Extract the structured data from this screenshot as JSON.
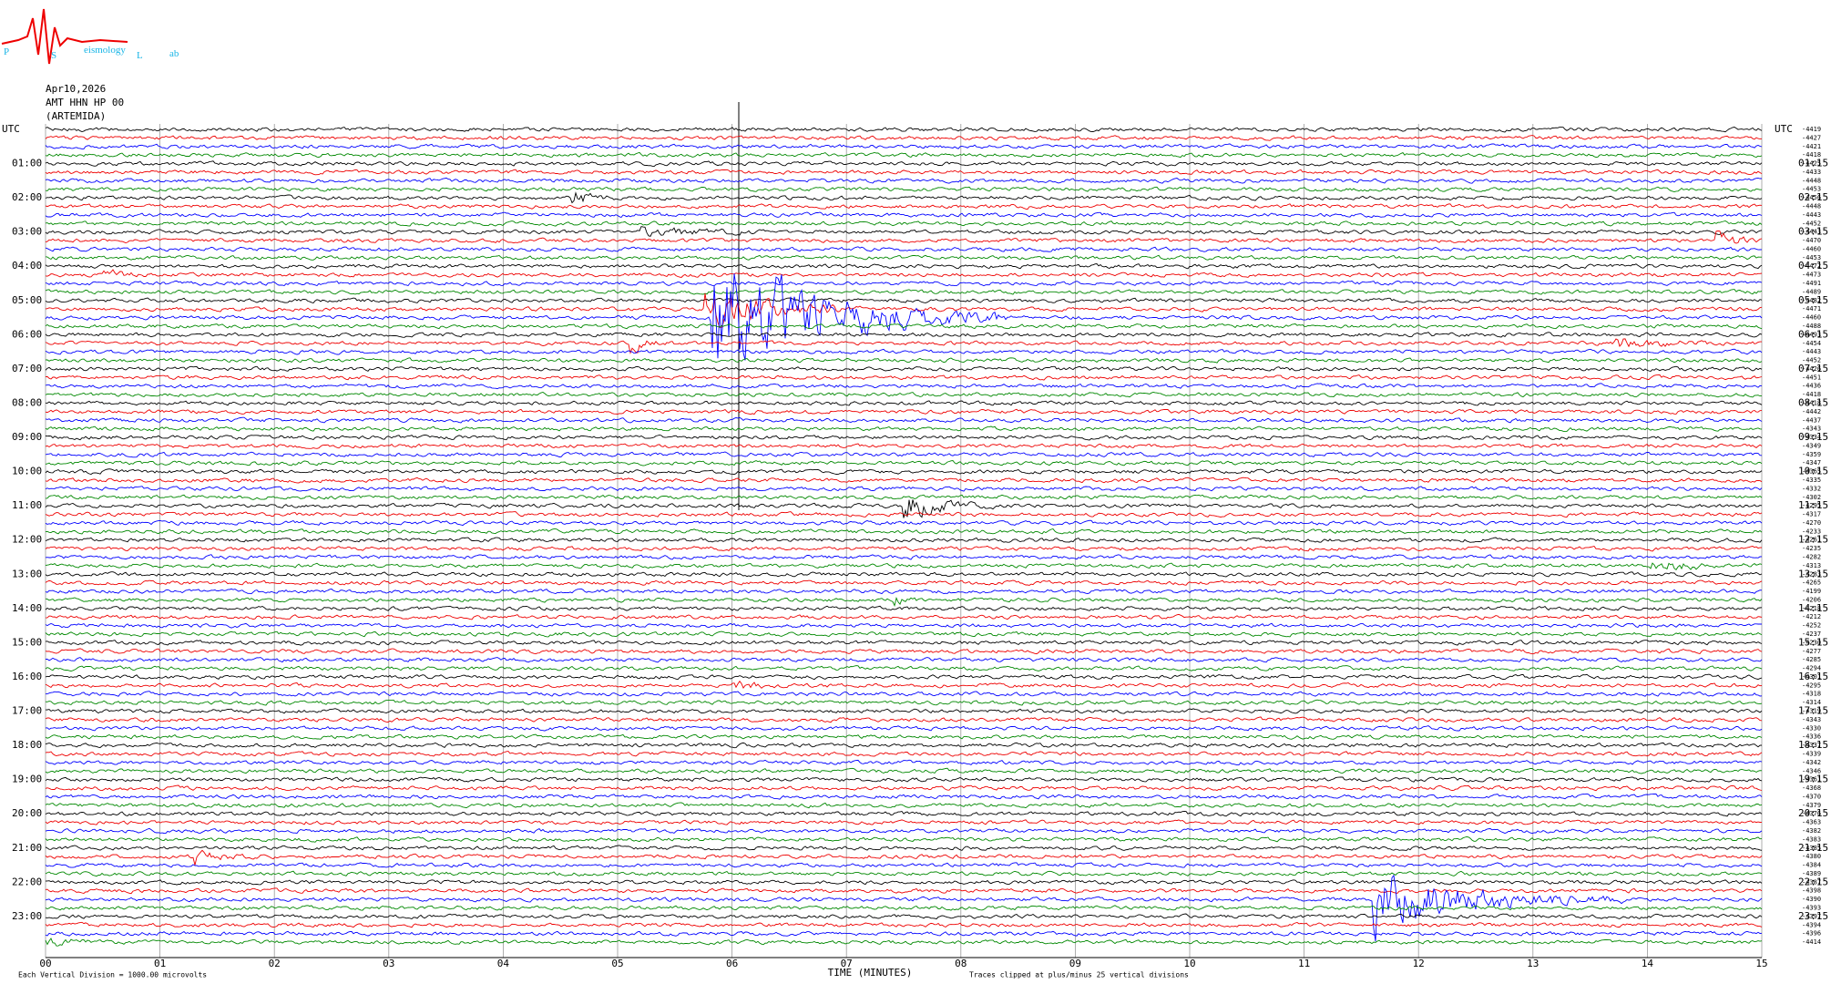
{
  "header": {
    "logo": {
      "letters": [
        "P",
        "S",
        "L"
      ],
      "small": [
        "eismology",
        "ab"
      ]
    },
    "date": "Apr10,2026",
    "channel": "AMT HHN HP 00",
    "station": "(ARTEMIDA)"
  },
  "left_axis": {
    "title": "UTC",
    "labels": [
      "01:00",
      "02:00",
      "03:00",
      "04:00",
      "05:00",
      "06:00",
      "07:00",
      "08:00",
      "09:00",
      "10:00",
      "11:00",
      "12:00",
      "13:00",
      "14:00",
      "15:00",
      "16:00",
      "17:00",
      "18:00",
      "19:00",
      "20:00",
      "21:00",
      "22:00",
      "23:00"
    ]
  },
  "right_axis": {
    "title": "UTC",
    "labels": [
      "01:15",
      "02:15",
      "03:15",
      "04:15",
      "05:15",
      "06:15",
      "07:15",
      "08:15",
      "09:15",
      "10:15",
      "11:15",
      "12:15",
      "13:15",
      "14:15",
      "15:15",
      "16:15",
      "17:15",
      "18:15",
      "19:15",
      "20:15",
      "21:15",
      "22:15",
      "23:15"
    ],
    "trace_offsets": [
      -4419,
      -4427,
      -4421,
      -4418,
      -4425,
      -4433,
      -4448,
      -4453,
      -4456,
      -4448,
      -4443,
      -4452,
      -4443,
      -4470,
      -4460,
      -4453,
      -4472,
      -4473,
      -4491,
      -4489,
      -4482,
      -4471,
      -4460,
      -4488,
      -4493,
      -4454,
      -4443,
      -4452,
      -4426,
      -4451,
      -4436,
      -4418,
      -4418,
      -4442,
      -4437,
      -4343,
      -4334,
      -4349,
      -4359,
      -4347,
      -4365,
      -4335,
      -4332,
      -4302,
      -4295,
      -4317,
      -4270,
      -4233,
      -4261,
      -4235,
      -4282,
      -4313,
      -4283,
      -4265,
      -4199,
      -4206,
      -4218,
      -4212,
      -4252,
      -4237,
      -4230,
      -4277,
      -4285,
      -4294,
      -4301,
      -4295,
      -4318,
      -4314,
      -4319,
      -4343,
      -4330,
      -4336,
      -4337,
      -4339,
      -4342,
      -4346,
      -4361,
      -4368,
      -4370,
      -4379,
      -4376,
      -4363,
      -4382,
      -4383,
      -4385,
      -4380,
      -4384,
      -4389,
      -4387,
      -4398,
      -4390,
      -4393,
      -4397,
      -4394,
      -4396,
      -4414
    ]
  },
  "time_axis": {
    "ticks": [
      "00",
      "01",
      "02",
      "03",
      "04",
      "05",
      "06",
      "07",
      "08",
      "09",
      "10",
      "11",
      "12",
      "13",
      "14",
      "15"
    ],
    "title": "TIME (MINUTES)"
  },
  "footer": {
    "scale_note": "Each Vertical Division = 1000.00 microvolts",
    "clip_note": "Traces clipped at plus/minus 25 vertical divisions"
  }
}
